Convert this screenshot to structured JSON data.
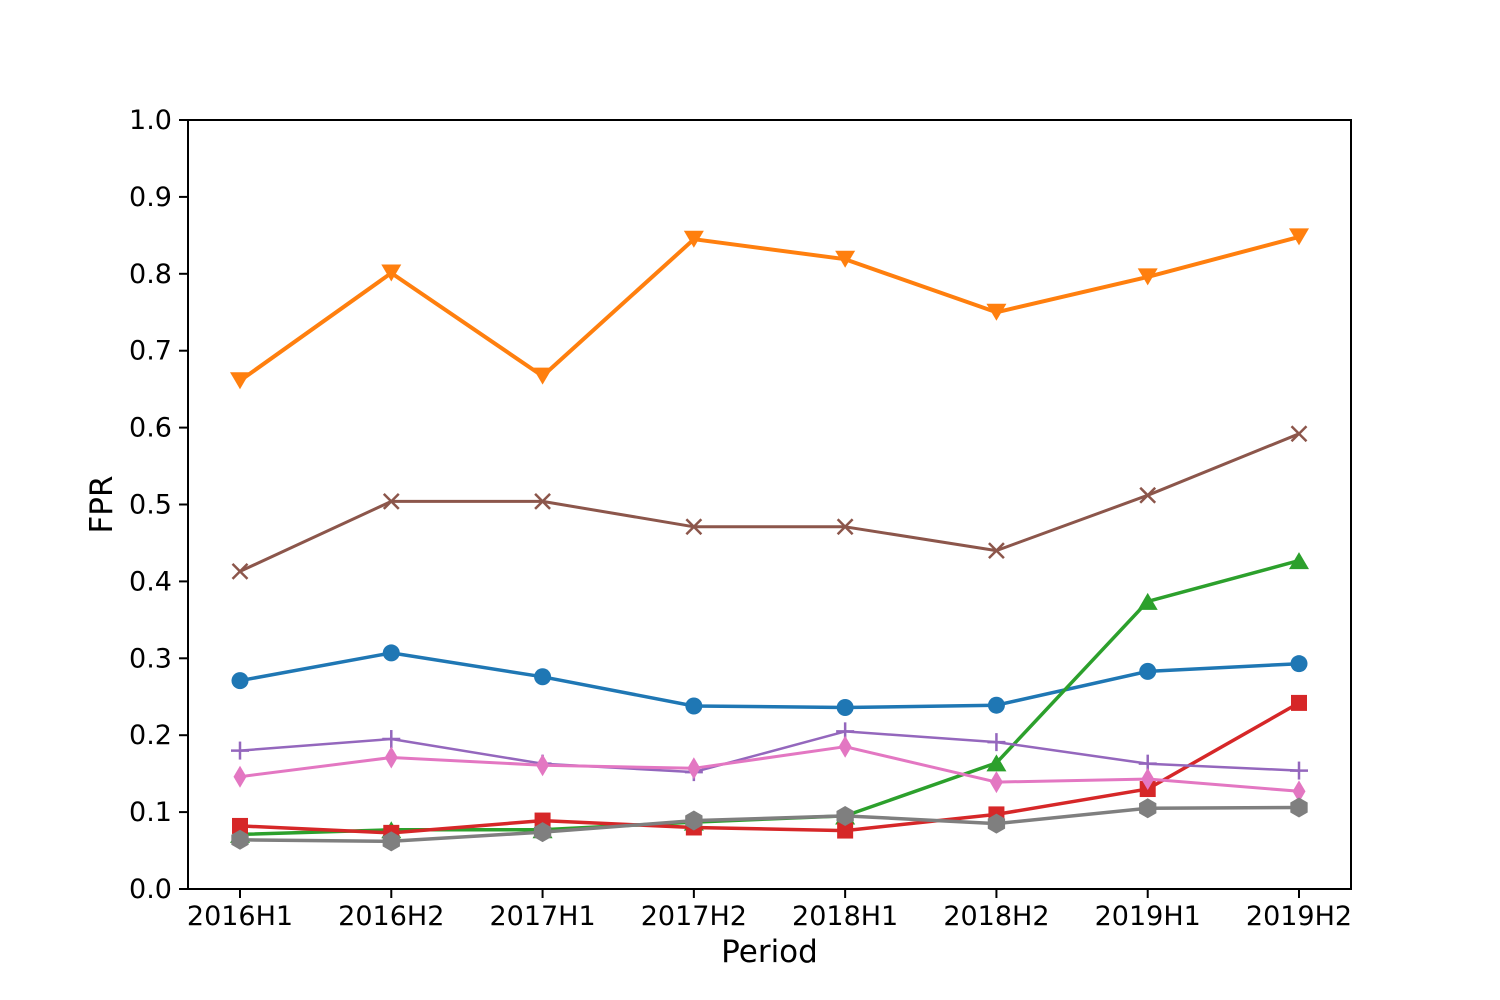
{
  "chart_data": {
    "type": "line",
    "title": "",
    "xlabel": "Period",
    "ylabel": "FPR",
    "categories": [
      "2016H1",
      "2016H2",
      "2017H1",
      "2017H2",
      "2018H1",
      "2018H2",
      "2019H1",
      "2019H2"
    ],
    "ylim": [
      0.0,
      1.0
    ],
    "yticks": [
      0.0,
      0.1,
      0.2,
      0.3,
      0.4,
      0.5,
      0.6,
      0.7,
      0.8,
      0.9,
      1.0
    ],
    "grid": false,
    "legend": "none",
    "axis_color": "#000000",
    "background_color": "#ffffff",
    "series": [
      {
        "name": "series-1-blue-circle",
        "marker": "circle",
        "color": "#1f77b4",
        "line_width": 3.5,
        "values": [
          0.271,
          0.307,
          0.276,
          0.238,
          0.236,
          0.239,
          0.283,
          0.293
        ]
      },
      {
        "name": "series-2-orange-triangle-down",
        "marker": "triangle-down",
        "color": "#ff7f0e",
        "line_width": 4,
        "values": [
          0.661,
          0.801,
          0.667,
          0.845,
          0.819,
          0.75,
          0.796,
          0.848
        ]
      },
      {
        "name": "series-3-green-triangle-up",
        "marker": "triangle-up",
        "color": "#2ca02c",
        "line_width": 3.5,
        "values": [
          0.071,
          0.077,
          0.077,
          0.087,
          0.095,
          0.164,
          0.374,
          0.427
        ]
      },
      {
        "name": "series-4-red-square",
        "marker": "square",
        "color": "#d62728",
        "line_width": 3.5,
        "values": [
          0.082,
          0.073,
          0.089,
          0.08,
          0.076,
          0.097,
          0.13,
          0.242
        ]
      },
      {
        "name": "series-5-purple-plus",
        "marker": "plus",
        "color": "#9467bd",
        "line_width": 2.5,
        "values": [
          0.18,
          0.195,
          0.163,
          0.152,
          0.205,
          0.191,
          0.163,
          0.154
        ]
      },
      {
        "name": "series-6-brown-x",
        "marker": "x",
        "color": "#8c564b",
        "line_width": 3,
        "values": [
          0.413,
          0.504,
          0.504,
          0.471,
          0.471,
          0.44,
          0.512,
          0.592
        ]
      },
      {
        "name": "series-7-pink-thin-diamond",
        "marker": "thin-diamond",
        "color": "#e377c2",
        "line_width": 3,
        "values": [
          0.146,
          0.171,
          0.161,
          0.157,
          0.185,
          0.139,
          0.143,
          0.127
        ]
      },
      {
        "name": "series-8-gray-hexagon",
        "marker": "hexagon",
        "color": "#7f7f7f",
        "line_width": 3.5,
        "values": [
          0.064,
          0.062,
          0.074,
          0.089,
          0.095,
          0.085,
          0.105,
          0.106
        ]
      }
    ]
  }
}
